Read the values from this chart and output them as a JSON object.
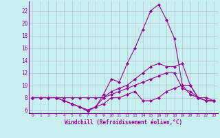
{
  "title": "",
  "xlabel": "Windchill (Refroidissement éolien,°C)",
  "ylabel": "",
  "bg_color": "#c8eef0",
  "line_color": "#990099",
  "grid_color": "#b0c8cc",
  "xlim": [
    -0.5,
    23.5
  ],
  "ylim": [
    5.5,
    23.5
  ],
  "yticks": [
    6,
    8,
    10,
    12,
    14,
    16,
    18,
    20,
    22
  ],
  "xticks": [
    0,
    1,
    2,
    3,
    4,
    5,
    6,
    7,
    8,
    9,
    10,
    11,
    12,
    13,
    14,
    15,
    16,
    17,
    18,
    19,
    20,
    21,
    22,
    23
  ],
  "series": [
    {
      "x": [
        0,
        1,
        2,
        3,
        4,
        5,
        6,
        7,
        8,
        9,
        10,
        11,
        12,
        13,
        14,
        15,
        16,
        17,
        18,
        19,
        20,
        21,
        22,
        23
      ],
      "y": [
        8,
        8,
        8,
        8,
        7.5,
        7,
        6.5,
        6,
        6.5,
        8.5,
        11,
        10.5,
        13.5,
        16,
        19,
        22,
        23,
        20.5,
        17.5,
        10,
        8.5,
        8,
        7.5,
        7.5
      ]
    },
    {
      "x": [
        0,
        1,
        2,
        3,
        4,
        5,
        6,
        7,
        8,
        9,
        10,
        11,
        12,
        13,
        14,
        15,
        16,
        17,
        18,
        19,
        20,
        21,
        22,
        23
      ],
      "y": [
        8,
        8,
        8,
        8,
        7.5,
        7,
        6.5,
        6,
        6.5,
        8,
        9,
        9.5,
        10,
        11,
        12,
        13,
        13.5,
        13,
        13,
        13.5,
        10,
        8,
        7.5,
        7.5
      ]
    },
    {
      "x": [
        0,
        1,
        2,
        3,
        4,
        5,
        6,
        7,
        8,
        9,
        10,
        11,
        12,
        13,
        14,
        15,
        16,
        17,
        18,
        19,
        20,
        21,
        22,
        23
      ],
      "y": [
        8,
        8,
        8,
        8,
        8,
        8,
        8,
        8,
        8,
        8,
        8.5,
        9,
        9.5,
        10,
        10.5,
        11,
        11.5,
        12,
        12,
        9.5,
        9,
        8,
        7.5,
        7.5
      ]
    },
    {
      "x": [
        0,
        1,
        2,
        3,
        4,
        5,
        6,
        7,
        8,
        9,
        10,
        11,
        12,
        13,
        14,
        15,
        16,
        17,
        18,
        19,
        20,
        21,
        22,
        23
      ],
      "y": [
        8,
        8,
        8,
        8,
        7.5,
        7,
        6.5,
        5.8,
        6.5,
        7,
        8,
        8,
        8.5,
        9,
        7.5,
        7.5,
        8,
        9,
        9.5,
        10,
        10,
        8,
        8,
        7.5
      ]
    }
  ]
}
